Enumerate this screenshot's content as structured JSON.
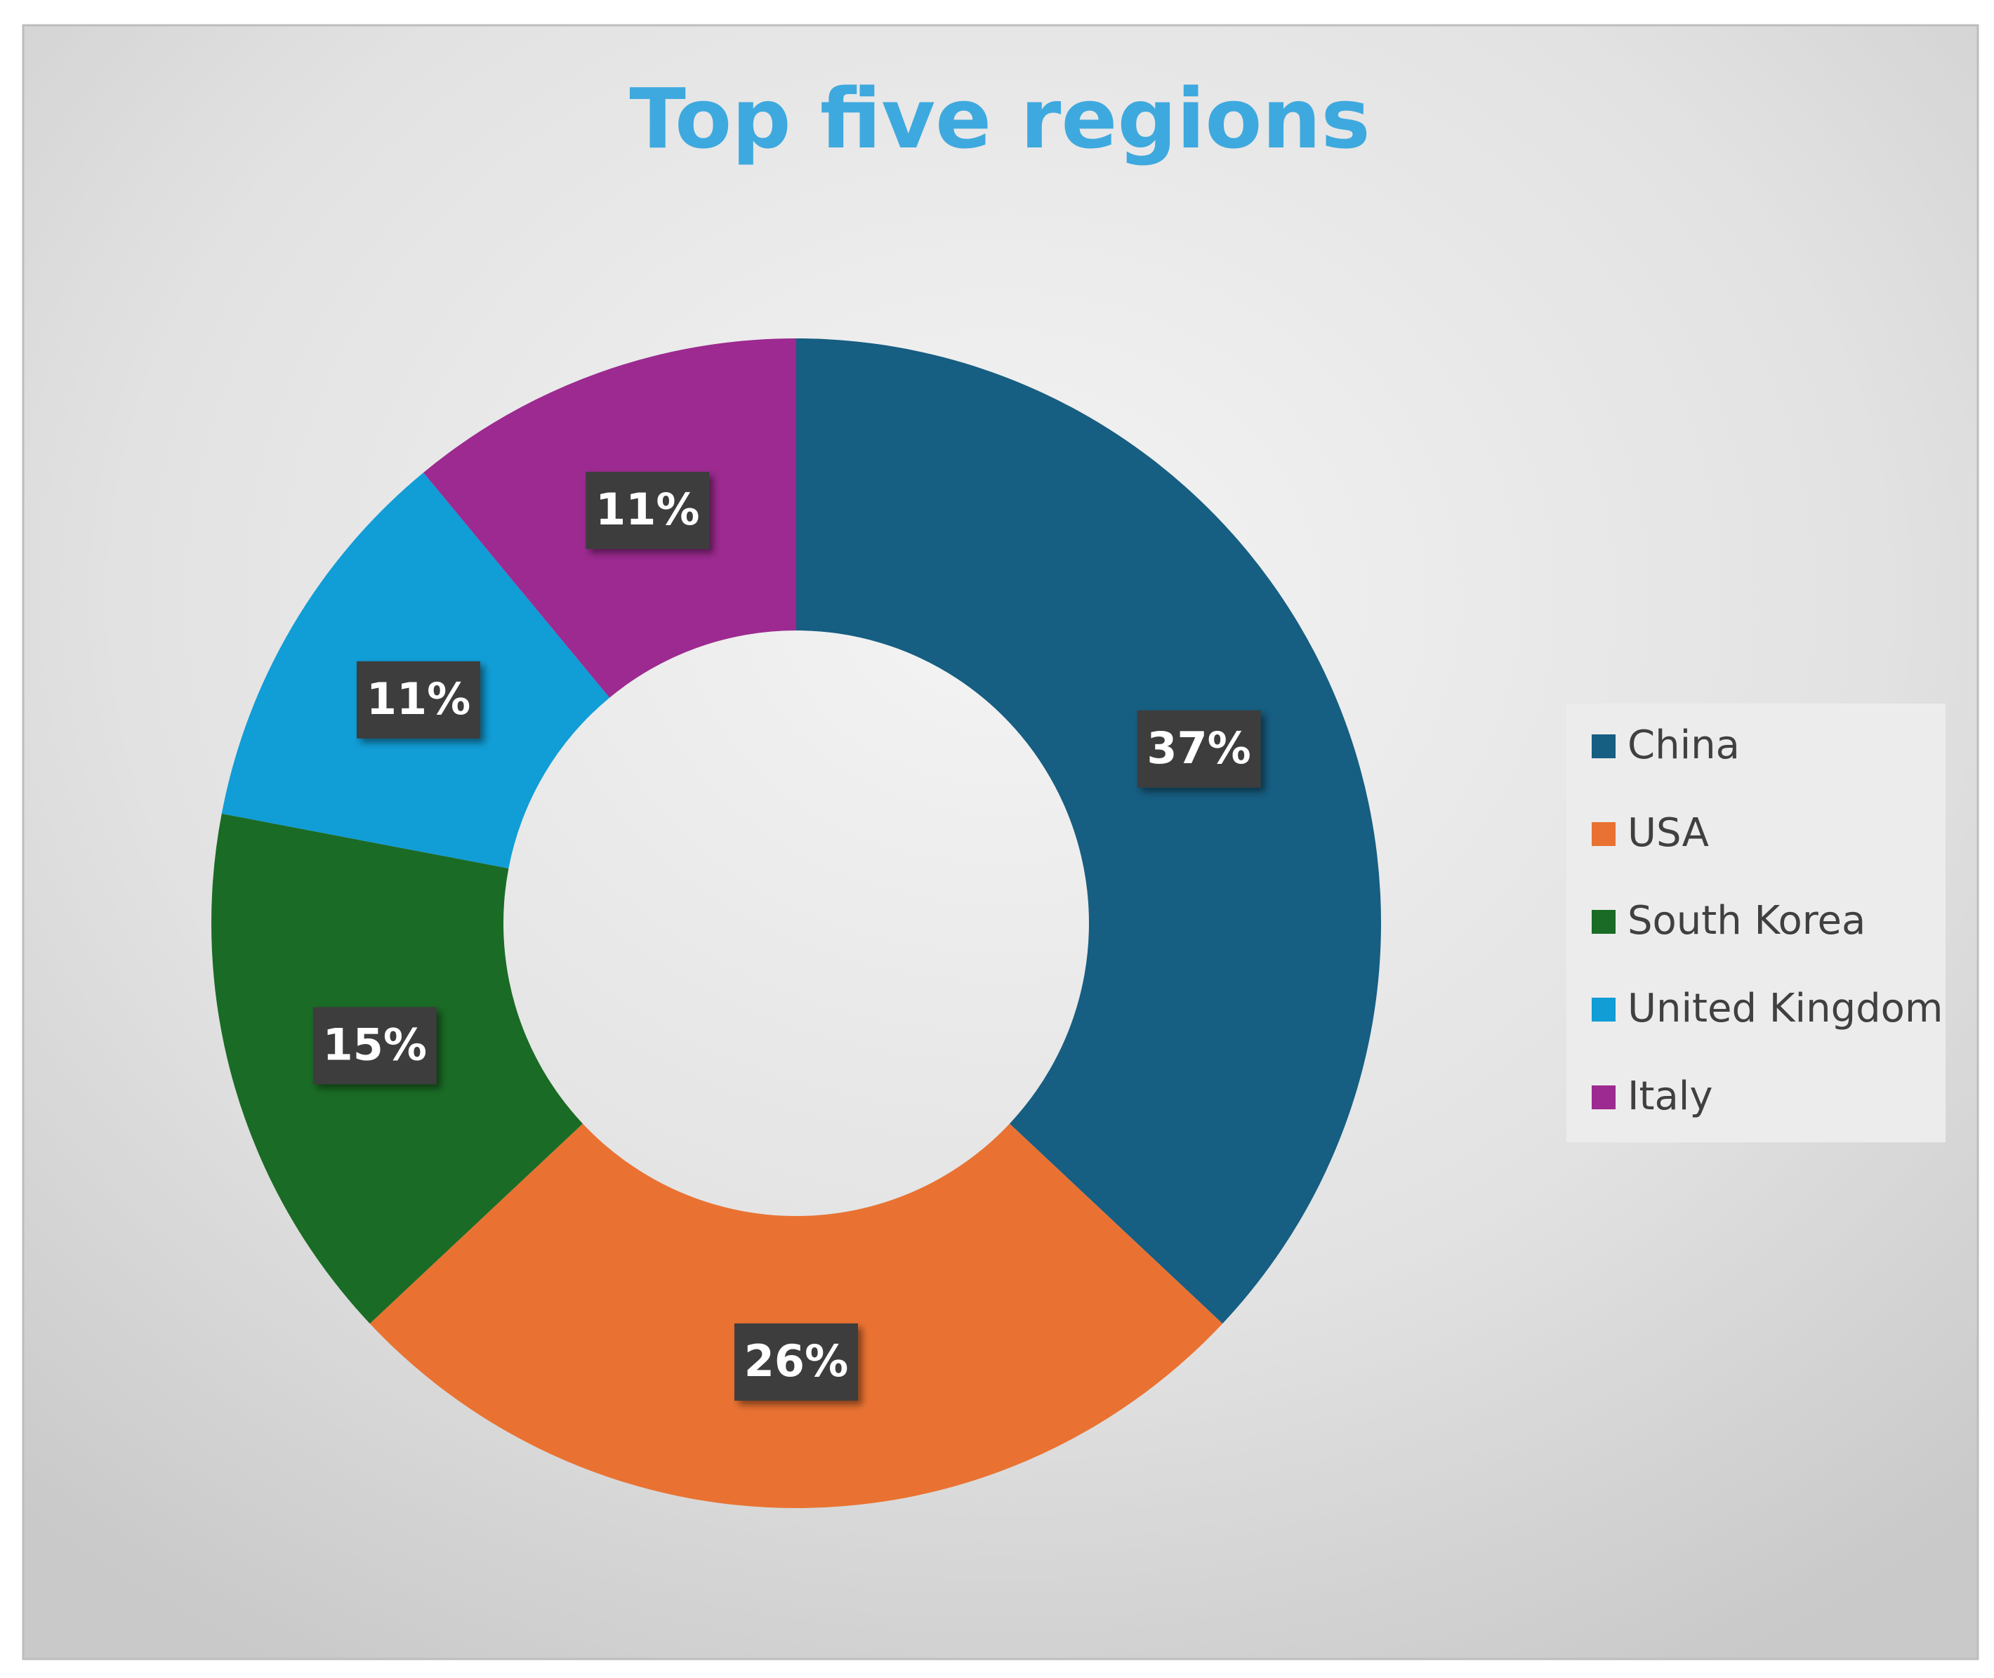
{
  "chart_data": {
    "type": "donut",
    "title": "Top five regions",
    "categories": [
      "China",
      "USA",
      "South Korea",
      "United Kingdom",
      "Italy"
    ],
    "values": [
      37,
      26,
      15,
      11,
      11
    ],
    "value_labels": [
      "37%",
      "26%",
      "15%",
      "11%",
      "11%"
    ],
    "colors": [
      "#165e82",
      "#e97232",
      "#1a6b25",
      "#119dd6",
      "#9c2a90"
    ],
    "legend": "right"
  }
}
